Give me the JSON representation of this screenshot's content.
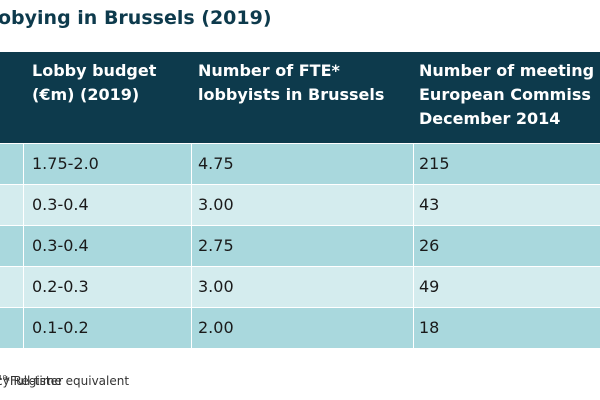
{
  "title": "obying in Brussels (2019)",
  "table": {
    "headers": [
      "Lobby budget\n(€m) (2019)",
      "Number of FTE*\nlobbyists in Brussels",
      "Number of meeting\nEuropean Commiss\nDecember 2014"
    ],
    "rows": [
      [
        "1.75-2.0",
        "4.75",
        "215"
      ],
      [
        "0.3-0.4",
        "3.00",
        "43"
      ],
      [
        "0.3-0.4",
        "2.75",
        "26"
      ],
      [
        "0.2-0.3",
        "3.00",
        "49"
      ],
      [
        "0.1-0.2",
        "2.00",
        "18"
      ]
    ]
  },
  "footnote": {
    "prefix": "cy Register",
    "superscript": "10",
    "suffix": " / *Full-time equivalent"
  },
  "colors": {
    "header_bg": "#0d3a4c",
    "row_dark": "#a9d8dd",
    "row_light": "#d4ecee"
  }
}
